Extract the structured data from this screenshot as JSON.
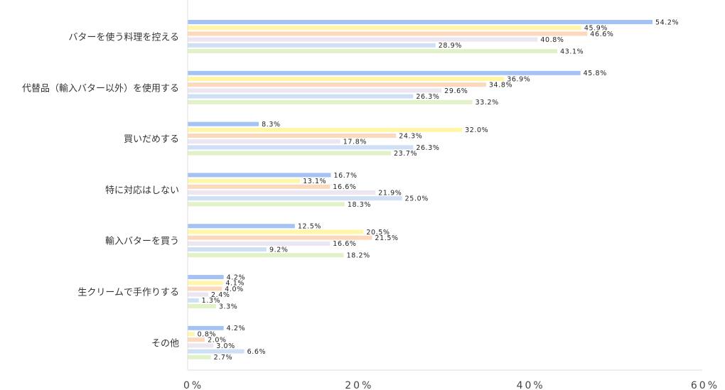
{
  "chart_data": {
    "type": "bar",
    "orientation": "horizontal",
    "categories": [
      "バターを使う料理を控える",
      "代替品（輸入バター以外）を使用する",
      "買いだめする",
      "特に対応はしない",
      "輸入バターを買う",
      "生クリームで手作りする",
      "その他"
    ],
    "series": [
      {
        "color": "#a4c2f4",
        "values": [
          54.2,
          45.8,
          8.3,
          16.7,
          12.5,
          4.2,
          4.2
        ],
        "labels": [
          "54.2%",
          "45.8%",
          "8.3%",
          "16.7%",
          "12.5%",
          "4.2%",
          "4.2%"
        ]
      },
      {
        "color": "#fff6a8",
        "values": [
          45.9,
          36.9,
          32.0,
          13.1,
          20.5,
          4.1,
          0.8
        ],
        "labels": [
          "45.9%",
          "36.9%",
          "32.0%",
          "13.1%",
          "20.5%",
          "4.1%",
          "0.8%"
        ]
      },
      {
        "color": "#fcd9bd",
        "values": [
          46.6,
          34.8,
          24.3,
          16.6,
          21.5,
          4.0,
          2.0
        ],
        "labels": [
          "46.6%",
          "34.8%",
          "24.3%",
          "16.6%",
          "21.5%",
          "4.0%",
          "2.0%"
        ]
      },
      {
        "color": "#ebe6f0",
        "values": [
          40.8,
          29.6,
          17.8,
          21.9,
          16.6,
          2.4,
          3.0
        ],
        "labels": [
          "40.8%",
          "29.6%",
          "17.8%",
          "21.9%",
          "16.6%",
          "2.4%",
          "3.0%"
        ]
      },
      {
        "color": "#cfe0f4",
        "values": [
          28.9,
          26.3,
          26.3,
          25.0,
          9.2,
          1.3,
          6.6
        ],
        "labels": [
          "28.9%",
          "26.3%",
          "26.3%",
          "25.0%",
          "9.2%",
          "1.3%",
          "6.6%"
        ]
      },
      {
        "color": "#e2f2c8",
        "values": [
          43.1,
          33.2,
          23.7,
          18.3,
          18.2,
          3.3,
          2.7
        ],
        "labels": [
          "43.1%",
          "33.2%",
          "23.7%",
          "18.3%",
          "18.2%",
          "3.3%",
          "2.7%"
        ]
      }
    ],
    "xlim": [
      0,
      60
    ],
    "xticks": [
      {
        "value": 0,
        "label": "0%"
      },
      {
        "value": 20,
        "label": "20%"
      },
      {
        "value": 40,
        "label": "40%"
      },
      {
        "value": 60,
        "label": "60%"
      }
    ],
    "title": "",
    "xlabel": "",
    "ylabel": "",
    "grid": false,
    "axis_color": "#dddddd"
  }
}
